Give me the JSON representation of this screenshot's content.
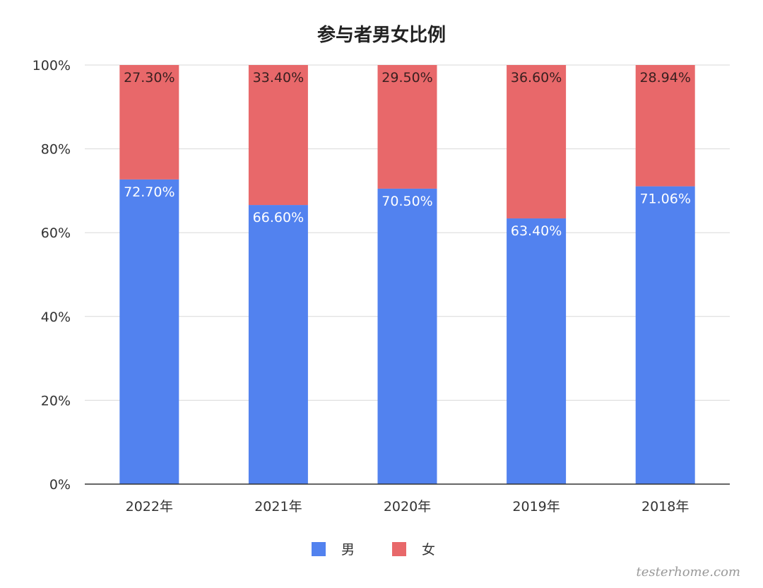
{
  "chart_data": {
    "type": "bar",
    "stacked": true,
    "percent_stacked": true,
    "title": "参与者男女比例",
    "categories": [
      "2022年",
      "2021年",
      "2020年",
      "2019年",
      "2018年"
    ],
    "series": [
      {
        "name": "男",
        "values": [
          72.7,
          66.6,
          70.5,
          63.4,
          71.06
        ],
        "labels": [
          "72.70%",
          "66.60%",
          "70.50%",
          "63.40%",
          "71.06%"
        ],
        "color": "#5282ef"
      },
      {
        "name": "女",
        "values": [
          27.3,
          33.4,
          29.5,
          36.6,
          28.94
        ],
        "labels": [
          "27.30%",
          "33.40%",
          "29.50%",
          "36.60%",
          "28.94%"
        ],
        "color": "#e8686a"
      }
    ],
    "ylim": [
      0,
      100
    ],
    "yticks": [
      "0%",
      "20%",
      "40%",
      "60%",
      "80%",
      "100%"
    ],
    "grid": true,
    "legend_position": "bottom"
  },
  "watermark": "testerhome.com",
  "colors": {
    "male_label": "#ffffff",
    "female_label": "#3a2020"
  }
}
